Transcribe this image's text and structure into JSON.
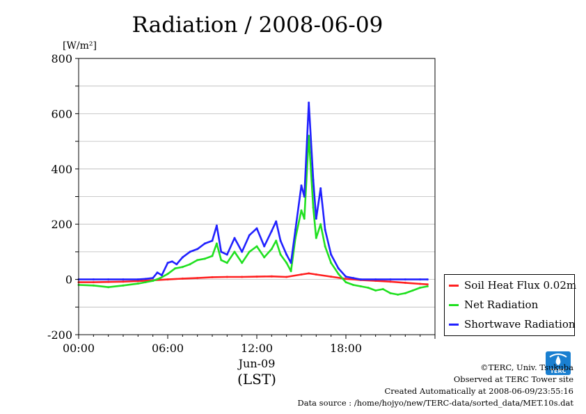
{
  "chart_data": {
    "type": "line",
    "title": "Radiation / 2008-06-09",
    "ylabel": "[W/m²]",
    "xlabel": "(LST)",
    "x_date_label": "Jun-09",
    "ylim": [
      -200,
      800
    ],
    "xlim_hours": [
      0,
      24
    ],
    "yticks": [
      -200,
      0,
      200,
      400,
      600,
      800
    ],
    "xticks": [
      {
        "hour": 0,
        "label": "00:00"
      },
      {
        "hour": 6,
        "label": "06:00"
      },
      {
        "hour": 12,
        "label": "12:00"
      },
      {
        "hour": 18,
        "label": "18:00"
      }
    ],
    "grid": true,
    "legend_position": "lower-right outside",
    "series": [
      {
        "name": "Soil Heat Flux 0.02m",
        "color": "#ff2020",
        "x": [
          0,
          1,
          2,
          3,
          4,
          5,
          6,
          7,
          8,
          9,
          10,
          11,
          12,
          13,
          14,
          15,
          15.5,
          16,
          17,
          18,
          19,
          20,
          21,
          22,
          23,
          23.5
        ],
        "y": [
          -10,
          -10,
          -9,
          -8,
          -6,
          -3,
          0,
          3,
          5,
          8,
          9,
          9,
          10,
          11,
          9,
          18,
          22,
          18,
          10,
          2,
          -2,
          -5,
          -8,
          -12,
          -16,
          -18
        ]
      },
      {
        "name": "Net Radiation",
        "color": "#20e020",
        "x": [
          0,
          1,
          2,
          3,
          4,
          4.5,
          5,
          5.5,
          6,
          6.5,
          7,
          7.5,
          8,
          8.5,
          9,
          9.3,
          9.6,
          10,
          10.5,
          11,
          11.5,
          12,
          12.5,
          13,
          13.3,
          13.6,
          14,
          14.3,
          14.6,
          15,
          15.2,
          15.5,
          15.8,
          16,
          16.3,
          16.6,
          17,
          17.5,
          18,
          18.5,
          19,
          19.5,
          20,
          20.5,
          21,
          21.5,
          22,
          22.5,
          23,
          23.5
        ],
        "y": [
          -20,
          -22,
          -28,
          -22,
          -15,
          -10,
          -5,
          5,
          20,
          40,
          45,
          55,
          70,
          75,
          85,
          130,
          70,
          60,
          100,
          60,
          100,
          120,
          80,
          110,
          140,
          90,
          60,
          30,
          150,
          250,
          220,
          520,
          260,
          150,
          200,
          120,
          60,
          20,
          -10,
          -20,
          -25,
          -30,
          -40,
          -35,
          -50,
          -55,
          -50,
          -40,
          -30,
          -25
        ]
      },
      {
        "name": "Shortwave Radiation",
        "color": "#2020ff",
        "x": [
          0,
          1,
          2,
          3,
          4,
          4.5,
          5,
          5.3,
          5.6,
          6,
          6.3,
          6.6,
          7,
          7.5,
          8,
          8.5,
          9,
          9.3,
          9.6,
          10,
          10.5,
          11,
          11.5,
          12,
          12.5,
          13,
          13.3,
          13.6,
          14,
          14.3,
          14.6,
          15,
          15.2,
          15.5,
          15.8,
          16,
          16.3,
          16.6,
          17,
          17.5,
          18,
          18.5,
          19,
          20,
          21,
          22,
          23,
          23.5
        ],
        "y": [
          0,
          0,
          0,
          0,
          0,
          2,
          5,
          25,
          15,
          60,
          65,
          55,
          80,
          100,
          110,
          130,
          140,
          195,
          100,
          90,
          150,
          100,
          160,
          185,
          120,
          175,
          210,
          140,
          90,
          60,
          180,
          340,
          300,
          640,
          360,
          220,
          330,
          180,
          90,
          40,
          10,
          5,
          0,
          0,
          0,
          0,
          0,
          0
        ]
      }
    ]
  },
  "footer": {
    "copyright": "©TERC, Univ. Tsukuba",
    "observed": "Observed at TERC Tower site",
    "created": "Created Automatically at 2008-06-09/23:55:16",
    "source": "Data source : /home/hojyo/new/TERC-data/sorted_data/MET.10s.dat"
  },
  "logo": {
    "text": "TERC",
    "color": "#1a7fd0"
  }
}
